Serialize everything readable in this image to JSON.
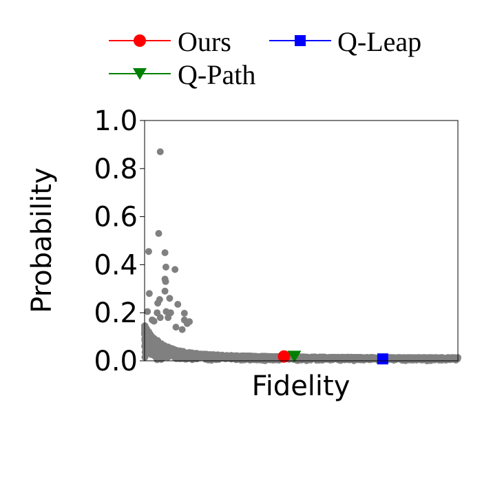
{
  "chart_data": {
    "type": "scatter",
    "xlabel": "Fidelity",
    "ylabel": "Probability",
    "ylim": [
      0,
      1
    ],
    "yticks": [
      "0.0",
      "0.2",
      "0.4",
      "0.6",
      "0.8",
      "1.0"
    ],
    "x_tick_labels_shown": false,
    "legend_placement": "top",
    "background_series": {
      "color": "#808080",
      "outliers": [
        {
          "x": 0.05,
          "y": 0.87
        },
        {
          "x": 0.045,
          "y": 0.53
        },
        {
          "x": 0.065,
          "y": 0.45
        },
        {
          "x": 0.013,
          "y": 0.455
        },
        {
          "x": 0.068,
          "y": 0.39
        },
        {
          "x": 0.097,
          "y": 0.38
        },
        {
          "x": 0.065,
          "y": 0.34
        },
        {
          "x": 0.067,
          "y": 0.33
        },
        {
          "x": 0.015,
          "y": 0.28
        },
        {
          "x": 0.065,
          "y": 0.29
        },
        {
          "x": 0.08,
          "y": 0.26
        },
        {
          "x": 0.048,
          "y": 0.255
        },
        {
          "x": 0.042,
          "y": 0.24
        },
        {
          "x": 0.106,
          "y": 0.235
        },
        {
          "x": 0.069,
          "y": 0.205
        },
        {
          "x": 0.083,
          "y": 0.2
        },
        {
          "x": 0.04,
          "y": 0.2
        },
        {
          "x": 0.009,
          "y": 0.205
        },
        {
          "x": 0.127,
          "y": 0.198
        },
        {
          "x": 0.127,
          "y": 0.17
        },
        {
          "x": 0.143,
          "y": 0.163
        },
        {
          "x": 0.136,
          "y": 0.155
        },
        {
          "x": 0.024,
          "y": 0.17
        },
        {
          "x": 0.075,
          "y": 0.18
        },
        {
          "x": 0.05,
          "y": 0.18
        },
        {
          "x": 0.03,
          "y": 0.165
        },
        {
          "x": 0.1,
          "y": 0.14
        },
        {
          "x": 0.12,
          "y": 0.13
        }
      ]
    },
    "series": [
      {
        "name": "Ours",
        "color": "#ff0000",
        "marker": "circle",
        "x": 0.445,
        "y": 0.018
      },
      {
        "name": "Q-Path",
        "color": "#008000",
        "marker": "triangle-down",
        "x": 0.478,
        "y": 0.016
      },
      {
        "name": "Q-Leap",
        "color": "#0000ff",
        "marker": "square",
        "x": 0.76,
        "y": 0.008
      }
    ]
  }
}
